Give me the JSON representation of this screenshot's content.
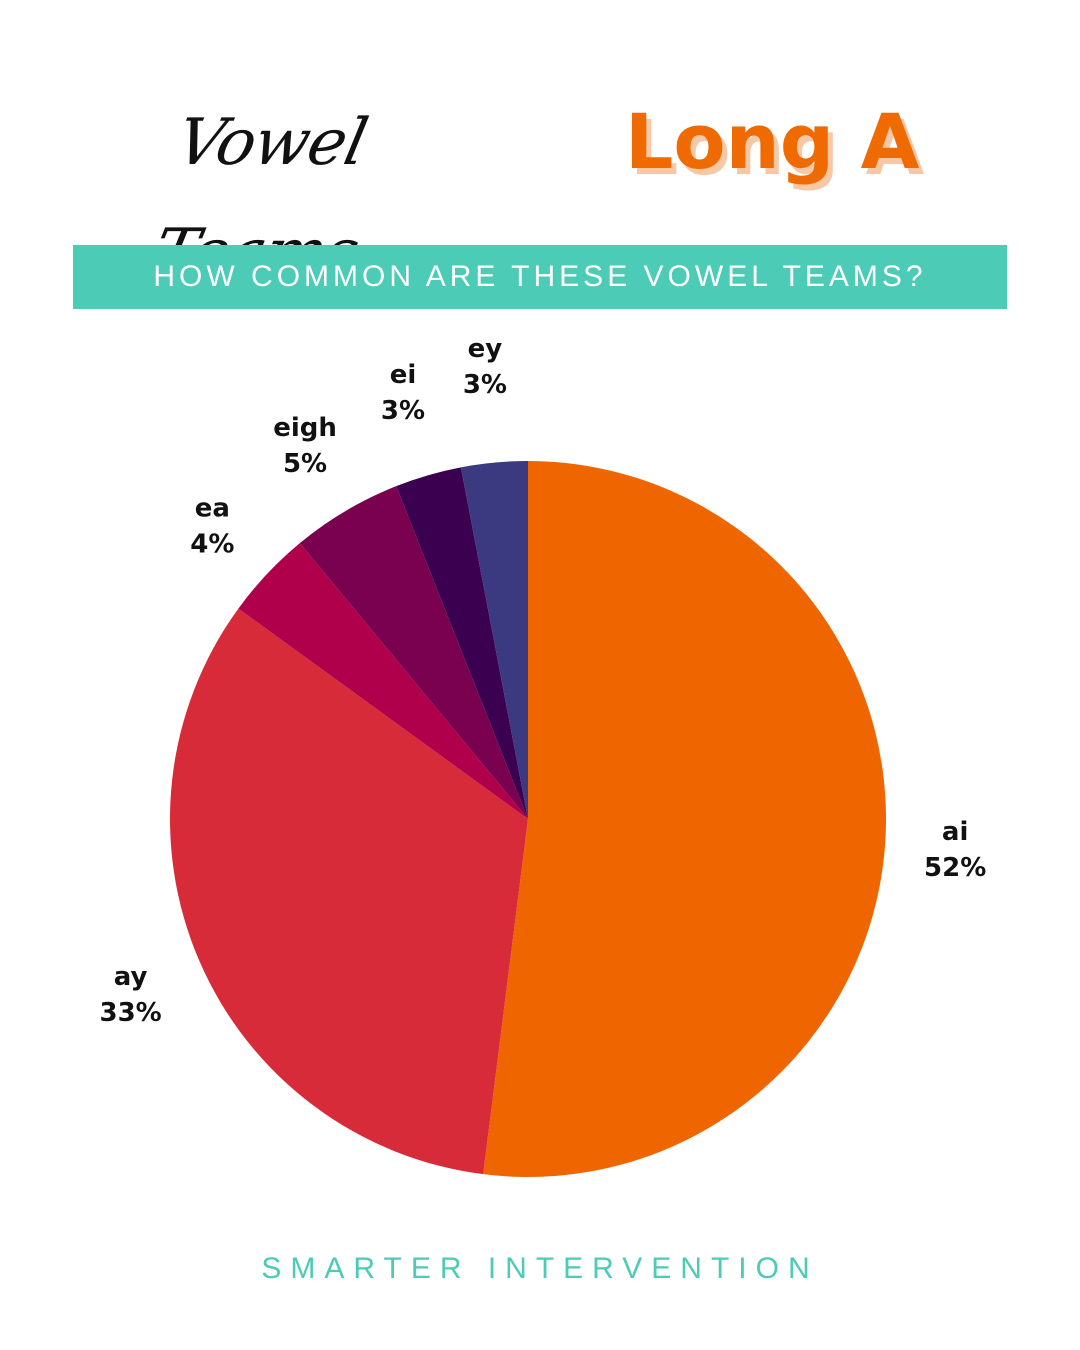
{
  "header": {
    "script_title": "Vowel Teams",
    "bold_title": "Long A",
    "bold_title_color": "#ef6a00"
  },
  "banner": {
    "text": "HOW COMMON ARE THESE VOWEL TEAMS?",
    "background": "#4ccbb6"
  },
  "chart_data": {
    "type": "pie",
    "start": "12 o'clock, clockwise",
    "slices": [
      {
        "label": "ai",
        "value": 52,
        "display": "52%",
        "color": "#ef6600"
      },
      {
        "label": "ay",
        "value": 33,
        "display": "33%",
        "color": "#d82b3a"
      },
      {
        "label": "ea",
        "value": 4,
        "display": "4%",
        "color": "#b0004b"
      },
      {
        "label": "eigh",
        "value": 5,
        "display": "5%",
        "color": "#7a0050"
      },
      {
        "label": "ei",
        "value": 3,
        "display": "3%",
        "color": "#3b0050"
      },
      {
        "label": "ey",
        "value": 3,
        "display": "3%",
        "color": "#3b3a80"
      }
    ]
  },
  "footer": {
    "text": "SMARTER INTERVENTION",
    "color": "#4ccbb6"
  }
}
